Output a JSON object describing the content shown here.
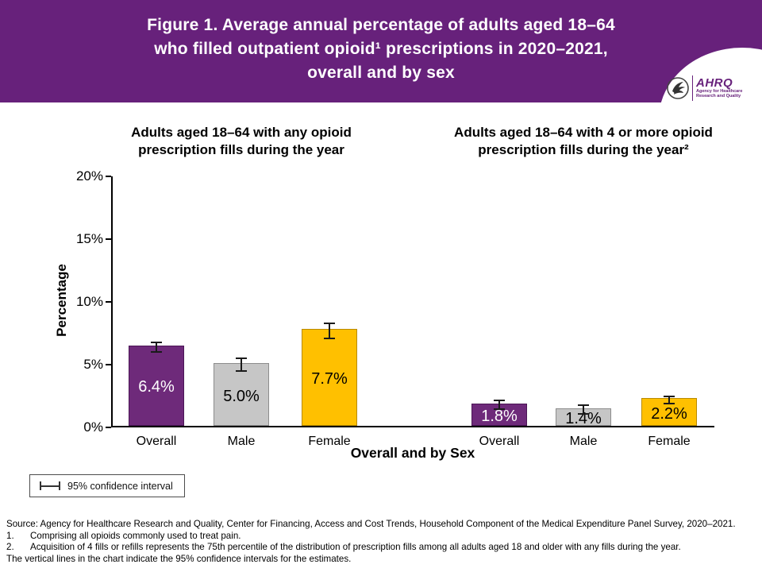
{
  "header": {
    "title_lines": [
      "Figure 1. Average annual percentage of adults aged 18–64",
      "who filled outpatient opioid¹ prescriptions in 2020–2021,",
      "overall and by sex"
    ],
    "bg_color": "#67217B",
    "logo": {
      "name": "AHRQ",
      "tagline_lines": [
        "Agency for Healthcare",
        "Research and Quality"
      ]
    }
  },
  "chart_data": {
    "type": "bar",
    "title": "Figure 1. Average annual percentage of adults aged 18–64 who filled outpatient opioid prescriptions in 2020–2021, overall and by sex",
    "ylabel": "Percentage",
    "xlabel": "Overall and by Sex",
    "ylim": [
      0,
      20
    ],
    "yticks": [
      0,
      5,
      10,
      15,
      20
    ],
    "ytick_suffix": "%",
    "grid": false,
    "legend_position": "bottom-left",
    "categories": [
      "Overall",
      "Male",
      "Female"
    ],
    "groups": [
      {
        "title": "Adults aged 18–64 with any opioid prescription fills during the year",
        "values": [
          6.4,
          5.0,
          7.7
        ],
        "labels": [
          "6.4%",
          "5.0%",
          "7.7%"
        ],
        "ci_half": [
          0.4,
          0.5,
          0.6
        ]
      },
      {
        "title": "Adults aged 18–64 with 4 or more opioid prescription fills during the year²",
        "values": [
          1.8,
          1.4,
          2.2
        ],
        "labels": [
          "1.8%",
          "1.4%",
          "2.2%"
        ],
        "ci_half": [
          0.35,
          0.35,
          0.3
        ]
      }
    ],
    "bar_colors": [
      "#6E2A7A",
      "#C6C6C6",
      "#FFC000"
    ],
    "bar_border_colors": [
      "#4B1656",
      "#8C8C8C",
      "#B98A00"
    ],
    "value_label_colors": [
      "#FFFFFF",
      "#000000",
      "#000000"
    ],
    "legend": {
      "label": "95% confidence interval"
    }
  },
  "footer": {
    "source": "Source: Agency for Healthcare Research and Quality, Center for Financing, Access and Cost Trends, Household Component of the Medical Expenditure Panel Survey, 2020–2021.",
    "footnotes": [
      {
        "num": "1.",
        "text": "Comprising all opioids commonly used to treat pain."
      },
      {
        "num": "2.",
        "text": "Acquisition of 4 fills or refills represents the 75th percentile of the distribution of prescription fills among all adults aged 18 and older with any fills during the year."
      }
    ],
    "note": "The vertical lines in the chart indicate the 95% confidence intervals for the estimates."
  }
}
